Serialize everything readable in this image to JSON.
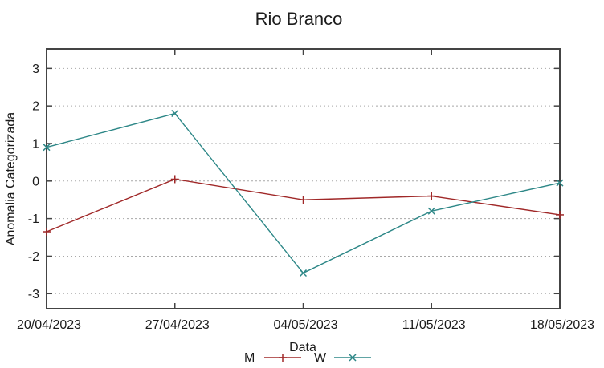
{
  "chart": {
    "title": "Rio Branco",
    "xlabel": "Data",
    "ylabel": "Anomalia Categorizada"
  },
  "chart_data": {
    "type": "line",
    "title": "Rio Branco",
    "xlabel": "Data",
    "ylabel": "Anomalia Categorizada",
    "categories": [
      "20/04/2023",
      "27/04/2023",
      "04/05/2023",
      "11/05/2023",
      "18/05/2023"
    ],
    "yticks": [
      3,
      2,
      1,
      0,
      -1,
      -2,
      -3
    ],
    "ylim": [
      -3.4,
      3.52
    ],
    "grid": "horizontal-dashed-gray",
    "legend_position": "bottom-center-below-xlabel",
    "series": [
      {
        "name": "M",
        "marker": "plus",
        "color": "#a02828",
        "values": [
          -1.35,
          0.05,
          -0.5,
          -0.4,
          -0.9
        ]
      },
      {
        "name": "W",
        "marker": "cross",
        "color": "#2d8787",
        "values": [
          0.9,
          1.8,
          -2.45,
          -0.8,
          -0.05
        ]
      }
    ],
    "colors": {
      "axis_border": "#444444",
      "grid_line": "#a8a8a8",
      "text": "#1c1c1c",
      "background": "#ffffff"
    }
  }
}
